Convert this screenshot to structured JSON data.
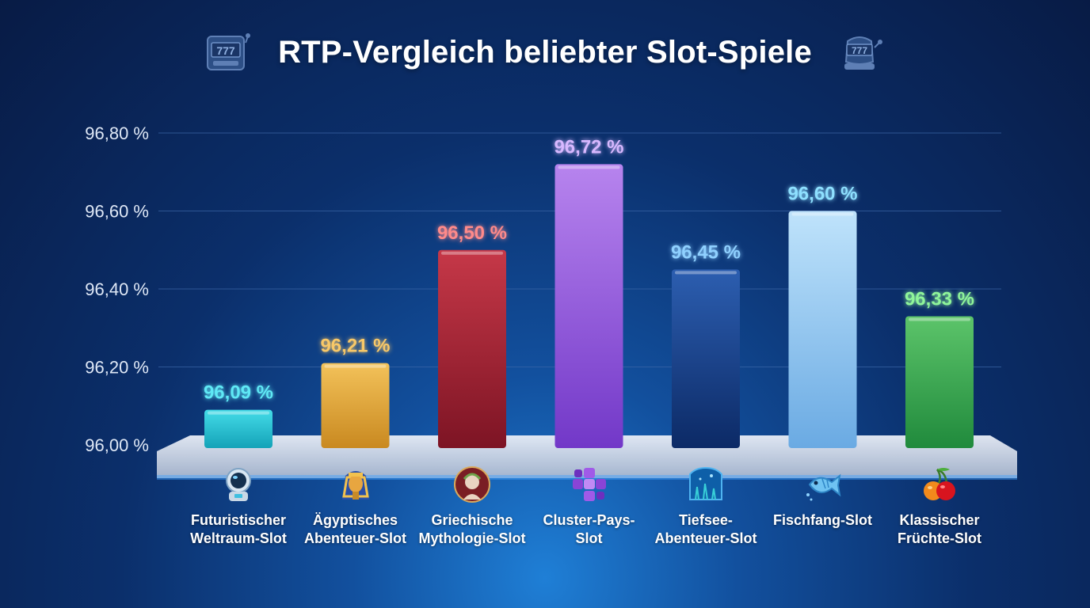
{
  "chart_data": {
    "type": "bar",
    "title": "RTP-Vergleich beliebter Slot-Spiele",
    "categories": [
      [
        "Futuristischer",
        "Weltraum-Slot"
      ],
      [
        "Ägyptisches",
        "Abenteuer-Slot"
      ],
      [
        "Griechische",
        "Mythologie-Slot"
      ],
      [
        "Cluster-Pays-",
        "Slot"
      ],
      [
        "Tiefsee-",
        "Abenteuer-Slot"
      ],
      [
        "Fischfang-Slot"
      ],
      [
        "Klassischer",
        "Früchte-Slot"
      ]
    ],
    "values": [
      96.09,
      96.21,
      96.5,
      96.72,
      96.45,
      96.6,
      96.33
    ],
    "value_labels": [
      "96,09 %",
      "96,21 %",
      "96,50 %",
      "96,72 %",
      "96,45 %",
      "96,60 %",
      "96,33 %"
    ],
    "yticks": [
      96.0,
      96.2,
      96.4,
      96.6,
      96.8
    ],
    "ytick_labels": [
      "96,00 %",
      "96,20 %",
      "96,40 %",
      "96,60 %",
      "96,80 %"
    ],
    "ylim": [
      96.0,
      96.8
    ],
    "grid": true,
    "icons": [
      "astronaut-icon",
      "pharaoh-icon",
      "greek-bust-icon",
      "purple-gem-cluster-icon",
      "deep-sea-icon",
      "fish-icon",
      "cherries-icon"
    ],
    "bar_colors": [
      [
        "#44dce8",
        "#14a2b8"
      ],
      [
        "#f3c25a",
        "#c98920"
      ],
      [
        "#c63848",
        "#7d1424"
      ],
      [
        "#b784ee",
        "#7238c8"
      ],
      [
        "#2c5eb0",
        "#0c2a66"
      ],
      [
        "#bfe3fb",
        "#6aaae3"
      ],
      [
        "#5cc46a",
        "#208a3c"
      ]
    ],
    "label_colors": [
      "#5ee8f5",
      "#f8c868",
      "#ff8a8a",
      "#d7b8ff",
      "#8fd0ff",
      "#8ee0ff",
      "#8ff59a"
    ]
  },
  "header": {
    "title": "RTP-Vergleich beliebter Slot-Spiele",
    "left_icon": "slot-machine-icon",
    "right_icon": "slot-machine-icon"
  }
}
